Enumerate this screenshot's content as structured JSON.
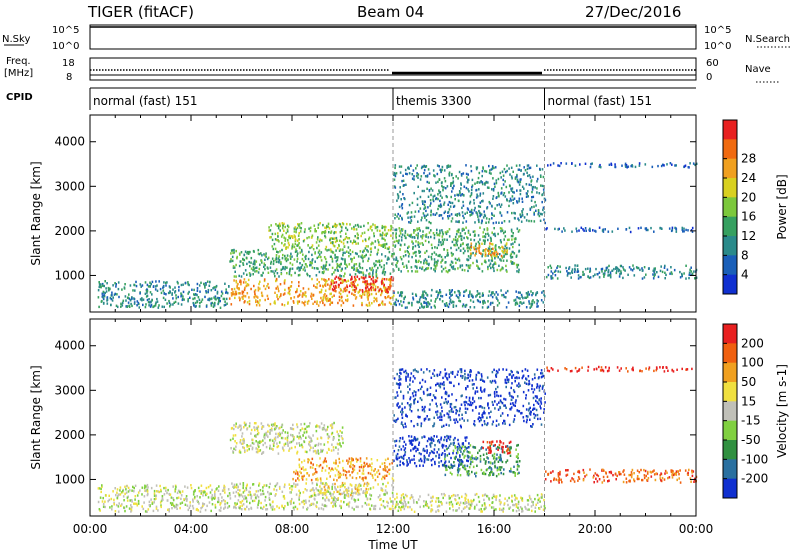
{
  "header": {
    "radar": "TIGER (fitACF)",
    "beam": "Beam 04",
    "date": "27/Dec/2016"
  },
  "top_panels": {
    "nsky_label": "N.Sky",
    "nsky_ticks": [
      "10^5",
      "10^0"
    ],
    "nsearch_label": "N.Search",
    "nsearch_ticks": [
      "10^5",
      "10^0"
    ],
    "freq_label_1": "Freq.",
    "freq_label_2": "[MHz]",
    "freq_ticks": [
      "18",
      "8"
    ],
    "nave_label": "Nave",
    "nave_ticks": [
      "60",
      "0"
    ],
    "cpid_label": "CPID",
    "cpid_segments": [
      {
        "label": "normal (fast) 151",
        "start": 0,
        "end": 12
      },
      {
        "label": "themis 3300",
        "start": 12,
        "end": 18
      },
      {
        "label": "normal (fast) 151",
        "start": 18,
        "end": 24
      }
    ]
  },
  "chart_data": [
    {
      "type": "heatmap",
      "name": "power",
      "ylabel": "Slant Range [km]",
      "ylim": [
        180,
        4600
      ],
      "yticks": [
        1000,
        2000,
        3000,
        4000
      ],
      "xlim": [
        0,
        24
      ],
      "colorbar_label": "Power [dB]",
      "colorbar_ticks": [
        "4",
        "8",
        "12",
        "16",
        "20",
        "24",
        "28"
      ],
      "colorbar_colors": [
        "#1030d0",
        "#1a5fb8",
        "#2a8a8a",
        "#36a060",
        "#7cc83c",
        "#d8d020",
        "#f0a020",
        "#f06a10",
        "#e82020"
      ],
      "regions": [
        {
          "t0": 0.3,
          "t1": 5.5,
          "r0": 300,
          "r1": 900,
          "level": 2
        },
        {
          "t0": 5.5,
          "t1": 12,
          "r0": 350,
          "r1": 950,
          "level": 6
        },
        {
          "t0": 9.5,
          "t1": 12,
          "r0": 650,
          "r1": 1000,
          "level": 8
        },
        {
          "t0": 5.5,
          "t1": 12,
          "r0": 1000,
          "r1": 1600,
          "level": 3
        },
        {
          "t0": 7,
          "t1": 12,
          "r0": 1600,
          "r1": 2200,
          "level": 4
        },
        {
          "t0": 12,
          "t1": 18,
          "r0": 300,
          "r1": 700,
          "level": 2
        },
        {
          "t0": 12,
          "t1": 17,
          "r0": 1100,
          "r1": 2100,
          "level": 3
        },
        {
          "t0": 15,
          "t1": 16.5,
          "r0": 1450,
          "r1": 1750,
          "level": 6
        },
        {
          "t0": 12,
          "t1": 18,
          "r0": 2200,
          "r1": 3500,
          "level": 2
        },
        {
          "t0": 18,
          "t1": 24,
          "r0": 950,
          "r1": 1250,
          "level": 2
        },
        {
          "t0": 18,
          "t1": 24,
          "r0": 2000,
          "r1": 2100,
          "level": 1
        },
        {
          "t0": 18,
          "t1": 24,
          "r0": 3450,
          "r1": 3550,
          "level": 1
        }
      ]
    },
    {
      "type": "heatmap",
      "name": "velocity",
      "ylabel": "Slant Range [km]",
      "ylim": [
        180,
        4600
      ],
      "yticks": [
        1000,
        2000,
        3000,
        4000
      ],
      "xlim": [
        0,
        24
      ],
      "xticks": [
        "00:00",
        "04:00",
        "08:00",
        "12:00",
        "16:00",
        "20:00",
        "00:00"
      ],
      "xlabel": "Time UT",
      "colorbar_label": "Velocity [m s-1]",
      "colorbar_ticks": [
        "200",
        "100",
        "50",
        "15",
        "-15",
        "-50",
        "-100",
        "-200"
      ],
      "colorbar_colors": [
        "#1030d0",
        "#2a70a0",
        "#309040",
        "#80d040",
        "#c0c0b8",
        "#f0e040",
        "#f0a020",
        "#f06010",
        "#e82020"
      ],
      "regions": [
        {
          "t0": 0.3,
          "t1": 5.5,
          "r0": 300,
          "r1": 900,
          "level": 4
        },
        {
          "t0": 5.5,
          "t1": 12,
          "r0": 350,
          "r1": 950,
          "level": 4
        },
        {
          "t0": 9,
          "t1": 11,
          "r0": 650,
          "r1": 950,
          "level": 5
        },
        {
          "t0": 5.5,
          "t1": 10,
          "r0": 1600,
          "r1": 2300,
          "level": 4
        },
        {
          "t0": 8,
          "t1": 12,
          "r0": 1000,
          "r1": 1500,
          "level": 6
        },
        {
          "t0": 12,
          "t1": 15,
          "r0": 1300,
          "r1": 2000,
          "level": 0
        },
        {
          "t0": 14,
          "t1": 17,
          "r0": 1100,
          "r1": 1800,
          "level": 2
        },
        {
          "t0": 15.5,
          "t1": 16.7,
          "r0": 1600,
          "r1": 1900,
          "level": 8
        },
        {
          "t0": 12,
          "t1": 18,
          "r0": 300,
          "r1": 700,
          "level": 4
        },
        {
          "t0": 12,
          "t1": 18,
          "r0": 2200,
          "r1": 3500,
          "level": 0
        },
        {
          "t0": 18,
          "t1": 24,
          "r0": 950,
          "r1": 1250,
          "level": 7
        },
        {
          "t0": 18,
          "t1": 24,
          "r0": 3450,
          "r1": 3550,
          "level": 8
        }
      ]
    }
  ]
}
